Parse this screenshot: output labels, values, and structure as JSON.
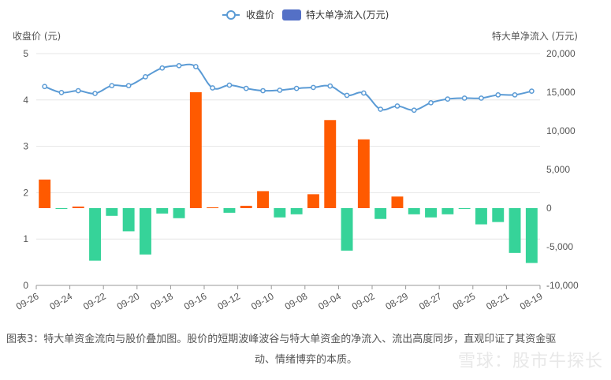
{
  "chart_data": {
    "type": "bar+line",
    "legend": {
      "placement": "top-center",
      "items": [
        {
          "name": "收盘价",
          "kind": "line",
          "color": "#5b9bd5"
        },
        {
          "name": "特大单净流入(万元)",
          "kind": "bar",
          "color": "#5470c6"
        }
      ]
    },
    "y_left": {
      "label": "收盘价 (元)",
      "min": 0,
      "max": 5,
      "ticks": [
        "0",
        "1",
        "2",
        "3",
        "4",
        "5"
      ]
    },
    "y_right": {
      "label": "特大单净流入 (万元)",
      "min": -10000,
      "max": 20000,
      "ticks": [
        "-10,000",
        "-5,000",
        "0",
        "5,000",
        "10,000",
        "15,000",
        "20,000"
      ]
    },
    "x_tick_labels": [
      "09-26",
      "09-24",
      "09-22",
      "09-20",
      "09-18",
      "09-16",
      "09-12",
      "09-10",
      "09-08",
      "09-04",
      "09-02",
      "08-29",
      "08-27",
      "08-25",
      "08-21",
      "08-19"
    ],
    "x_tick_positions": [
      0,
      2,
      4,
      6,
      8,
      10,
      12,
      14,
      16,
      18,
      20,
      22,
      24,
      26,
      28,
      30
    ],
    "n_points": 30,
    "price": [
      4.29,
      4.16,
      4.2,
      4.14,
      4.31,
      4.31,
      4.5,
      4.69,
      4.74,
      4.72,
      4.26,
      4.32,
      4.25,
      4.2,
      4.21,
      4.25,
      4.27,
      4.3,
      4.1,
      4.15,
      3.8,
      3.87,
      3.78,
      3.94,
      4.02,
      4.04,
      4.04,
      4.11,
      4.11,
      4.19
    ],
    "inflow": [
      3700,
      -100,
      200,
      -6800,
      -1000,
      -3000,
      -6000,
      -700,
      -1300,
      15000,
      100,
      -600,
      300,
      2200,
      -1200,
      -800,
      1800,
      11400,
      -5500,
      8900,
      -1400,
      1500,
      -800,
      -1200,
      -800,
      -100,
      -2100,
      -1800,
      -5800,
      -7100
    ],
    "colors": {
      "positive": "#ff5a00",
      "negative": "#36d399",
      "line": "#5b9bd5",
      "grid": "#e6e6e6",
      "axis_text": "#555555"
    }
  },
  "caption": {
    "line1": "图表3：特大单资金流向与股价叠加图。股价的短期波峰波谷与特大单资金的净流入、流出高度同步，直观印证了其资金驱",
    "line2": "动、情绪博弈的本质。"
  },
  "watermark": "雪球：股市牛探长"
}
